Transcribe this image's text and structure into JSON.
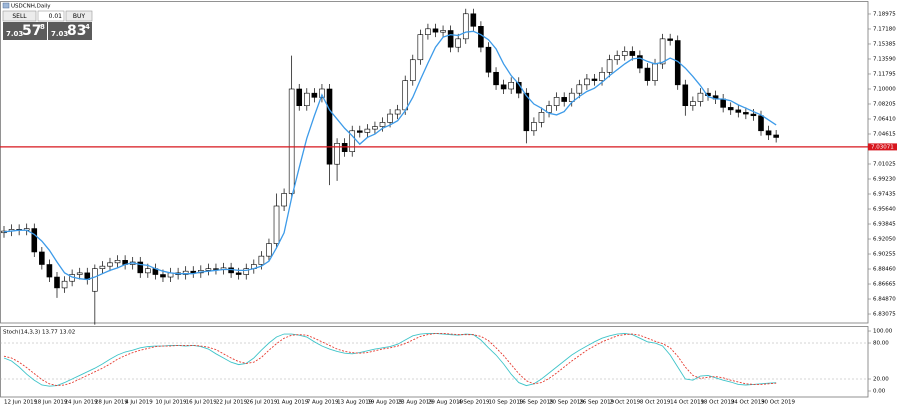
{
  "window": {
    "symbol_label": "USDCNH,Daily"
  },
  "trade_panel": {
    "sell_label": "SELL",
    "buy_label": "BUY",
    "lot": "0.01",
    "sell_price": {
      "big": "7.03",
      "pips": "57",
      "frac": "8"
    },
    "buy_price": {
      "big": "7.03",
      "pips": "83",
      "frac": "4"
    }
  },
  "chart_data": [
    {
      "type": "candlestick",
      "bull_color": "#ffffff",
      "bear_color": "#000000",
      "outline_color": "#000000",
      "open": [
        6.928,
        6.93,
        6.932,
        6.931,
        6.933,
        6.905,
        6.89,
        6.875,
        6.862,
        6.87,
        6.878,
        6.88,
        6.858,
        6.885,
        6.888,
        6.892,
        6.895,
        6.89,
        6.893,
        6.88,
        6.885,
        6.878,
        6.875,
        6.88,
        6.878,
        6.882,
        6.88,
        6.883,
        6.885,
        6.884,
        6.886,
        6.88,
        6.878,
        6.885,
        6.89,
        6.9,
        6.915,
        6.96,
        6.975,
        7.1,
        7.08,
        7.095,
        7.09,
        7.1,
        7.01,
        7.035,
        7.025,
        7.05,
        7.048,
        7.052,
        7.055,
        7.06,
        7.07,
        7.075,
        7.11,
        7.135,
        7.165,
        7.172,
        7.168,
        7.17,
        7.15,
        7.16,
        7.19,
        7.175,
        7.15,
        7.12,
        7.105,
        7.1,
        7.108,
        7.095,
        7.05,
        7.06,
        7.072,
        7.08,
        7.09,
        7.085,
        7.095,
        7.105,
        7.112,
        7.11,
        7.12,
        7.135,
        7.14,
        7.145,
        7.14,
        7.125,
        7.11,
        7.13,
        7.16,
        7.158,
        7.105,
        7.08,
        7.085,
        7.095,
        7.092,
        7.088,
        7.078,
        7.075,
        7.072,
        7.07,
        7.068,
        7.05,
        7.045
      ],
      "high": [
        6.936,
        6.938,
        6.938,
        6.939,
        6.939,
        6.911,
        6.896,
        6.881,
        6.876,
        6.884,
        6.886,
        6.886,
        6.89,
        6.894,
        6.898,
        6.901,
        6.901,
        6.899,
        6.899,
        6.891,
        6.891,
        6.884,
        6.886,
        6.886,
        6.888,
        6.888,
        6.889,
        6.891,
        6.891,
        6.892,
        6.892,
        6.886,
        6.891,
        6.896,
        6.906,
        6.921,
        6.975,
        6.981,
        7.14,
        7.106,
        7.101,
        7.101,
        7.106,
        7.106,
        7.041,
        7.041,
        7.056,
        7.056,
        7.058,
        7.061,
        7.066,
        7.076,
        7.081,
        7.116,
        7.141,
        7.171,
        7.178,
        7.178,
        7.176,
        7.176,
        7.166,
        7.196,
        7.196,
        7.181,
        7.156,
        7.126,
        7.111,
        7.114,
        7.114,
        7.101,
        7.066,
        7.078,
        7.086,
        7.096,
        7.096,
        7.101,
        7.111,
        7.118,
        7.118,
        7.126,
        7.141,
        7.146,
        7.151,
        7.151,
        7.146,
        7.131,
        7.136,
        7.166,
        7.166,
        7.164,
        7.111,
        7.091,
        7.101,
        7.101,
        7.098,
        7.094,
        7.084,
        7.081,
        7.078,
        7.076,
        7.074,
        7.056,
        7.051
      ],
      "low": [
        6.922,
        6.924,
        6.925,
        6.925,
        6.899,
        6.884,
        6.869,
        6.85,
        6.856,
        6.864,
        6.872,
        6.866,
        6.818,
        6.879,
        6.882,
        6.886,
        6.884,
        6.884,
        6.874,
        6.874,
        6.872,
        6.869,
        6.869,
        6.872,
        6.872,
        6.874,
        6.874,
        6.877,
        6.878,
        6.878,
        6.874,
        6.872,
        6.872,
        6.879,
        6.884,
        6.894,
        6.909,
        6.954,
        6.969,
        7.074,
        7.074,
        7.084,
        7.084,
        6.985,
        6.99,
        7.019,
        7.019,
        7.042,
        7.042,
        7.046,
        7.049,
        7.054,
        7.064,
        7.069,
        7.104,
        7.129,
        7.159,
        7.162,
        7.162,
        7.144,
        7.144,
        7.154,
        7.169,
        7.144,
        7.114,
        7.099,
        7.094,
        7.094,
        7.089,
        7.035,
        7.044,
        7.054,
        7.066,
        7.074,
        7.079,
        7.079,
        7.089,
        7.099,
        7.104,
        7.104,
        7.114,
        7.129,
        7.134,
        7.134,
        7.119,
        7.104,
        7.104,
        7.124,
        7.152,
        7.099,
        7.068,
        7.074,
        7.079,
        7.086,
        7.082,
        7.072,
        7.069,
        7.066,
        7.064,
        7.062,
        7.044,
        7.039,
        7.036
      ],
      "close": [
        6.93,
        6.932,
        6.931,
        6.933,
        6.905,
        6.89,
        6.875,
        6.862,
        6.87,
        6.878,
        6.88,
        6.872,
        6.885,
        6.888,
        6.892,
        6.895,
        6.89,
        6.893,
        6.88,
        6.885,
        6.878,
        6.875,
        6.88,
        6.878,
        6.882,
        6.88,
        6.883,
        6.885,
        6.884,
        6.886,
        6.88,
        6.878,
        6.885,
        6.89,
        6.9,
        6.915,
        6.96,
        6.975,
        7.1,
        7.08,
        7.095,
        7.09,
        7.1,
        7.01,
        7.035,
        7.025,
        7.05,
        7.048,
        7.052,
        7.055,
        7.06,
        7.07,
        7.075,
        7.11,
        7.135,
        7.165,
        7.172,
        7.168,
        7.17,
        7.15,
        7.16,
        7.19,
        7.175,
        7.15,
        7.12,
        7.105,
        7.1,
        7.108,
        7.095,
        7.05,
        7.06,
        7.072,
        7.08,
        7.09,
        7.085,
        7.095,
        7.105,
        7.112,
        7.11,
        7.12,
        7.135,
        7.14,
        7.145,
        7.14,
        7.125,
        7.11,
        7.13,
        7.16,
        7.158,
        7.105,
        7.08,
        7.085,
        7.095,
        7.092,
        7.088,
        7.078,
        7.075,
        7.072,
        7.07,
        7.068,
        7.05,
        7.045,
        7.042
      ],
      "ma": {
        "color": "#3d9be9",
        "values": [
          6.929,
          6.93,
          6.931,
          6.931,
          6.926,
          6.918,
          6.907,
          6.893,
          6.88,
          6.875,
          6.873,
          6.872,
          6.875,
          6.879,
          6.883,
          6.886,
          6.89,
          6.892,
          6.89,
          6.889,
          6.885,
          6.882,
          6.88,
          6.879,
          6.879,
          6.879,
          6.881,
          6.882,
          6.883,
          6.884,
          6.884,
          6.883,
          6.883,
          6.885,
          6.888,
          6.894,
          6.91,
          6.928,
          6.97,
          7.006,
          7.041,
          7.068,
          7.093,
          7.075,
          7.064,
          7.053,
          7.044,
          7.034,
          7.042,
          7.046,
          7.053,
          7.057,
          7.062,
          7.074,
          7.09,
          7.111,
          7.131,
          7.15,
          7.162,
          7.165,
          7.164,
          7.168,
          7.169,
          7.165,
          7.159,
          7.148,
          7.13,
          7.116,
          7.106,
          7.092,
          7.082,
          7.077,
          7.071,
          7.069,
          7.073,
          7.084,
          7.091,
          7.097,
          7.101,
          7.108,
          7.116,
          7.123,
          7.13,
          7.136,
          7.137,
          7.133,
          7.13,
          7.132,
          7.137,
          7.133,
          7.125,
          7.115,
          7.104,
          7.091,
          7.088,
          7.088,
          7.086,
          7.081,
          7.077,
          7.073,
          7.069,
          7.063,
          7.057
        ]
      },
      "hline": {
        "value": 7.03071,
        "label": "7.03071",
        "color": "#d7161d"
      },
      "ylim": [
        6.8212,
        7.2005
      ],
      "yticks": [
        7.18975,
        {
          "value": 7.1718,
          "label": "7.17180"
        },
        7.15385,
        {
          "value": 7.1359,
          "label": "7.13590"
        },
        7.11795,
        {
          "value": 7.1,
          "label": "7.10000"
        },
        7.08205,
        {
          "value": 7.0641,
          "label": "7.06410"
        },
        7.04615,
        7.01025,
        {
          "value": 6.9923,
          "label": "6.99230"
        },
        6.97435,
        {
          "value": 6.9564,
          "label": "6.95640"
        },
        6.93845,
        {
          "value": 6.9205,
          "label": "6.92050"
        },
        6.90255,
        {
          "value": 6.8846,
          "label": "6.88460"
        },
        6.86665,
        {
          "value": 6.8487,
          "label": "6.84870"
        },
        6.83075
      ]
    },
    {
      "type": "line",
      "title": "Stoch(14,3,3) 13.77 13.02",
      "categories": [
        "12 Jun 2019",
        null,
        null,
        null,
        "18 Jun 2019",
        null,
        null,
        null,
        "24 Jun 2019",
        null,
        null,
        null,
        "28 Jun 2019",
        null,
        null,
        null,
        "4 Jul 2019",
        null,
        null,
        null,
        "10 Jul 2019",
        null,
        null,
        null,
        "16 Jul 2019",
        null,
        null,
        null,
        "22 Jul 2019",
        null,
        null,
        null,
        "26 Jul 2019",
        null,
        null,
        null,
        "1 Aug 2019",
        null,
        null,
        null,
        "7 Aug 2019",
        null,
        null,
        null,
        "13 Aug 2019",
        null,
        null,
        null,
        "19 Aug 2019",
        null,
        null,
        null,
        "23 Aug 2019",
        null,
        null,
        null,
        "29 Aug 2019",
        null,
        null,
        null,
        "4 Sep 2019",
        null,
        null,
        null,
        "10 Sep 2019",
        null,
        null,
        null,
        "16 Sep 2019",
        null,
        null,
        null,
        "20 Sep 2019",
        null,
        null,
        null,
        "26 Sep 2019",
        null,
        null,
        null,
        "2 Oct 2019",
        null,
        null,
        null,
        "8 Oct 2019",
        null,
        null,
        null,
        "14 Oct 2019",
        null,
        null,
        null,
        "18 Oct 2019",
        null,
        null,
        null,
        "24 Oct 2019",
        null,
        null,
        null,
        "30 Oct 2019",
        null,
        null
      ],
      "series": [
        {
          "color": "#3fc4c9",
          "values": [
            55,
            50,
            40,
            28,
            18,
            10,
            8,
            9,
            14,
            20,
            26,
            32,
            38,
            45,
            53,
            60,
            65,
            68,
            72,
            74,
            75,
            75,
            76,
            76,
            75,
            76,
            74,
            70,
            62,
            55,
            48,
            44,
            46,
            55,
            68,
            80,
            90,
            95,
            95,
            93,
            90,
            82,
            75,
            70,
            66,
            63,
            62,
            64,
            67,
            70,
            72,
            74,
            78,
            85,
            92,
            95,
            96,
            96,
            95,
            94,
            93,
            95,
            94,
            85,
            72,
            60,
            45,
            28,
            14,
            9,
            12,
            20,
            30,
            40,
            50,
            60,
            68,
            75,
            82,
            88,
            92,
            95,
            96,
            94,
            88,
            82,
            80,
            75,
            60,
            40,
            20,
            18,
            25,
            26,
            22,
            18,
            15,
            11,
            10,
            11,
            12,
            13,
            13.77
          ]
        },
        {
          "color": "#e53a2f",
          "dash": true,
          "values": [
            58,
            55,
            48,
            39,
            29,
            19,
            12,
            9,
            10,
            14,
            20,
            26,
            32,
            38,
            45,
            53,
            59,
            64,
            68,
            71,
            74,
            75,
            75,
            76,
            76,
            76,
            75,
            73,
            69,
            62,
            55,
            49,
            46,
            48,
            56,
            68,
            79,
            88,
            93,
            94,
            93,
            88,
            82,
            76,
            70,
            66,
            64,
            63,
            64,
            67,
            70,
            72,
            75,
            79,
            85,
            91,
            94,
            96,
            96,
            95,
            94,
            94,
            94,
            91,
            84,
            72,
            59,
            44,
            29,
            17,
            12,
            14,
            21,
            30,
            40,
            50,
            59,
            68,
            75,
            82,
            87,
            92,
            94,
            95,
            93,
            88,
            83,
            79,
            72,
            58,
            40,
            26,
            21,
            23,
            24,
            22,
            18,
            15,
            12,
            11,
            11,
            12,
            13.02
          ]
        }
      ],
      "levels": [
        80,
        20
      ],
      "ylim": [
        -10,
        106.7
      ],
      "yticks": [
        {
          "value": 100,
          "label": "100.00"
        },
        {
          "value": 80,
          "label": "80.00"
        },
        {
          "value": 20,
          "label": "20.00"
        },
        {
          "value": 0,
          "label": "0.00"
        }
      ]
    }
  ]
}
